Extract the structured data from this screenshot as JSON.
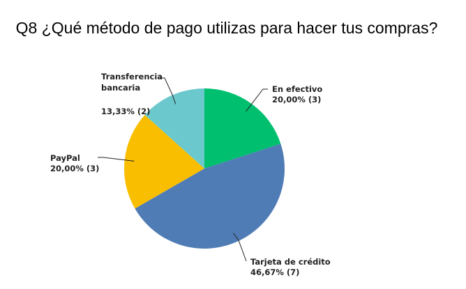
{
  "chart_data": {
    "type": "pie",
    "title": "Q8 ¿Qué método de pago utilizas para hacer tus compras?",
    "slices": [
      {
        "label": "En efectivo",
        "value_text": "20,00% (3)",
        "percent": 20.0,
        "count": 3,
        "color": "#00BF6F"
      },
      {
        "label": "Tarjeta de crédito",
        "value_text": "46,67% (7)",
        "percent": 46.67,
        "count": 7,
        "color": "#507CB6"
      },
      {
        "label": "PayPal",
        "value_text": "20,00% (3)",
        "percent": 20.0,
        "count": 3,
        "color": "#F9BE00"
      },
      {
        "label": "Transferencia bancaria",
        "label_lines": [
          "Transferencia",
          "bancaria"
        ],
        "value_text": "13,33% (2)",
        "percent": 13.33,
        "count": 2,
        "color": "#6BC8CD"
      }
    ]
  }
}
